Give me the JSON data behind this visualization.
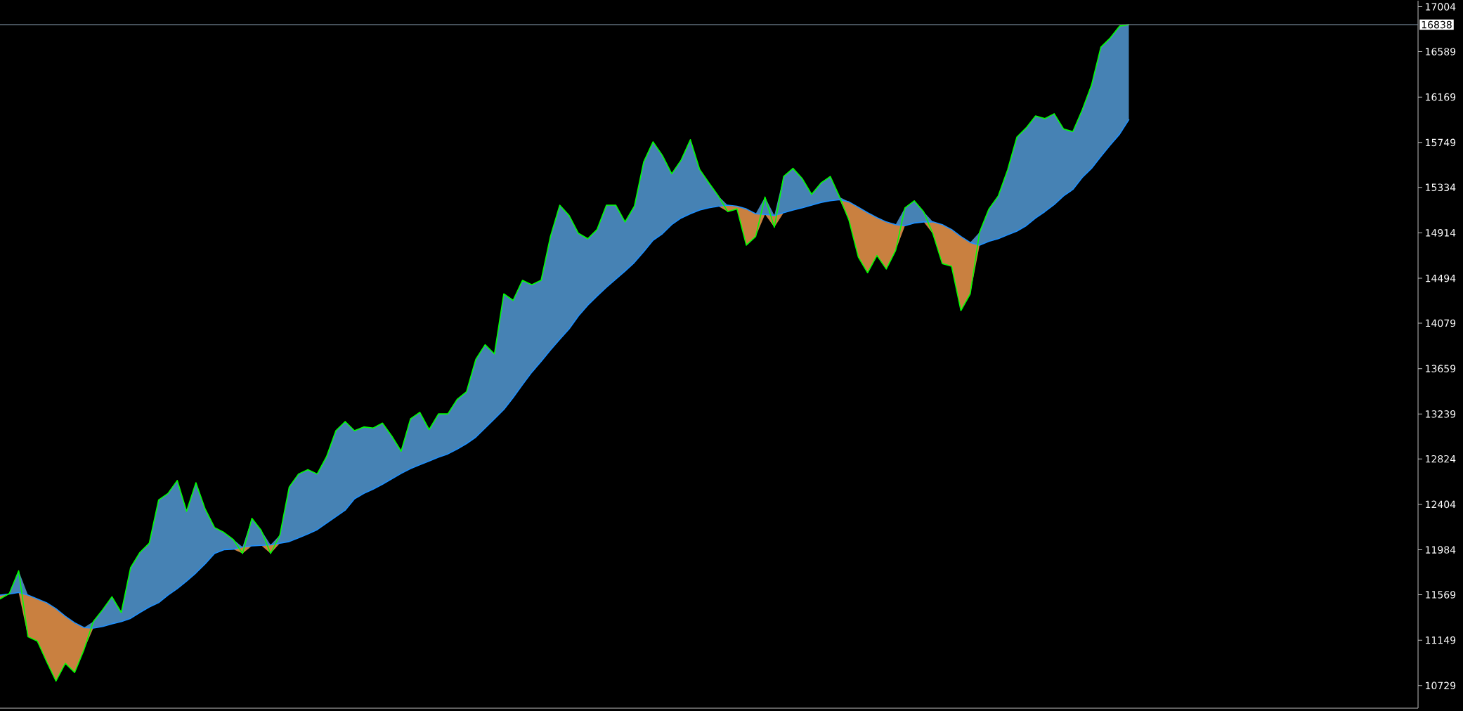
{
  "chart_data": {
    "type": "line",
    "categories": [
      null,
      null,
      null,
      null,
      null,
      null,
      null,
      null,
      null,
      null,
      null,
      null,
      null,
      null,
      null,
      null,
      null,
      null,
      null,
      null,
      null,
      null,
      null,
      null,
      null,
      null,
      null,
      null,
      null,
      null,
      null,
      null,
      null,
      null,
      null,
      null,
      null,
      null,
      null,
      null,
      null,
      null,
      null,
      null,
      null,
      null,
      null,
      null,
      null,
      null,
      null,
      null,
      null,
      null,
      null,
      null,
      null,
      null,
      null,
      null,
      null,
      null,
      null,
      null,
      null,
      null,
      null,
      null,
      null,
      null,
      null,
      null,
      null,
      null,
      null,
      null,
      null,
      null,
      null,
      null,
      null,
      null,
      null,
      null,
      null,
      null,
      null,
      null,
      null,
      null,
      null,
      null,
      null,
      null,
      null,
      null,
      null,
      null,
      null,
      null,
      null,
      null,
      null,
      null,
      null,
      null,
      null,
      null,
      null,
      null,
      null,
      null,
      null,
      null,
      null,
      null,
      null,
      null,
      null,
      null,
      null,
      null
    ],
    "series": [
      {
        "type": "area",
        "color": "#4682b4",
        "values": [
          11565,
          11580,
          11790,
          11565,
          null,
          null,
          null,
          null,
          null,
          11265,
          11320,
          11430,
          11550,
          11405,
          11820,
          11960,
          12045,
          12445,
          12505,
          12625,
          12340,
          12605,
          12360,
          12190,
          12145,
          12080,
          12010,
          12275,
          12165,
          12030,
          12120,
          12565,
          12685,
          12725,
          12685,
          12845,
          13085,
          13170,
          13085,
          13120,
          13110,
          13155,
          13035,
          12895,
          13195,
          13255,
          13095,
          13240,
          13240,
          13375,
          13445,
          13745,
          13880,
          13795,
          14350,
          14290,
          14475,
          14435,
          14475,
          14880,
          15170,
          15075,
          14910,
          14860,
          14945,
          15170,
          15170,
          15015,
          15160,
          15570,
          15755,
          15630,
          15460,
          15585,
          15775,
          15500,
          15375,
          15255,
          15170,
          null,
          null,
          15090,
          15245,
          15075,
          15435,
          15510,
          15415,
          15270,
          15375,
          15435,
          15245,
          15200,
          null,
          null,
          null,
          null,
          14990,
          15145,
          15210,
          15110,
          15015,
          null,
          null,
          null,
          14825,
          14920,
          15135,
          15255,
          15495,
          15800,
          15885,
          15995,
          15970,
          16015,
          15875,
          15850,
          16050,
          16280,
          16630,
          16715,
          16825,
          16838
        ]
      },
      {
        "type": "area",
        "color": "#c98040",
        "values": [
          11565,
          11575,
          11590,
          11565,
          11530,
          11495,
          11440,
          11370,
          11310,
          11265,
          11260,
          null,
          null,
          null,
          null,
          null,
          null,
          null,
          null,
          null,
          null,
          null,
          null,
          null,
          null,
          11990,
          12010,
          12020,
          12025,
          12030,
          12045,
          null,
          null,
          null,
          null,
          null,
          null,
          null,
          null,
          null,
          null,
          null,
          null,
          null,
          null,
          null,
          null,
          null,
          null,
          null,
          null,
          null,
          null,
          null,
          null,
          null,
          null,
          null,
          null,
          null,
          null,
          null,
          null,
          null,
          null,
          null,
          null,
          null,
          null,
          null,
          null,
          null,
          null,
          null,
          null,
          null,
          null,
          15160,
          15170,
          15160,
          15135,
          15090,
          15085,
          15075,
          15100,
          null,
          null,
          null,
          null,
          null,
          15220,
          15200,
          15150,
          15100,
          15055,
          15015,
          14990,
          14980,
          null,
          15015,
          15015,
          14990,
          14945,
          14880,
          14825,
          14800,
          null,
          null,
          null,
          null,
          null,
          null,
          null,
          null,
          null,
          null,
          null,
          null,
          null,
          null,
          null,
          null
        ]
      },
      {
        "color": "#1e90ff",
        "values": [
          11565,
          11575,
          11590,
          11565,
          11530,
          11495,
          11440,
          11370,
          11310,
          11265,
          11260,
          11275,
          11300,
          11320,
          11350,
          11405,
          11455,
          11495,
          11565,
          11625,
          11695,
          11770,
          11855,
          11950,
          11985,
          11990,
          12010,
          12020,
          12025,
          12030,
          12045,
          12060,
          12095,
          12130,
          12170,
          12230,
          12290,
          12350,
          12455,
          12505,
          12545,
          12590,
          12640,
          12690,
          12735,
          12770,
          12805,
          12840,
          12870,
          12915,
          12965,
          13025,
          13110,
          13195,
          13280,
          13390,
          13510,
          13625,
          13725,
          13830,
          13930,
          14025,
          14145,
          14245,
          14330,
          14410,
          14485,
          14560,
          14640,
          14740,
          14845,
          14905,
          14990,
          15050,
          15090,
          15125,
          15145,
          15160,
          15170,
          15160,
          15135,
          15090,
          15085,
          15075,
          15100,
          15125,
          15145,
          15170,
          15195,
          15210,
          15220,
          15200,
          15150,
          15100,
          15055,
          15015,
          14990,
          14980,
          15005,
          15015,
          15015,
          14990,
          14945,
          14880,
          14825,
          14800,
          14835,
          14860,
          14895,
          14930,
          14980,
          15050,
          15110,
          15175,
          15255,
          15315,
          15425,
          15510,
          15620,
          15725,
          15825,
          15960
        ]
      },
      {
        "color": "#00ff00",
        "values": [
          11530,
          11580,
          11790,
          11180,
          11140,
          10950,
          10770,
          10935,
          10850,
          11060,
          11320,
          11430,
          11550,
          11405,
          11820,
          11960,
          12045,
          12445,
          12505,
          12625,
          12340,
          12605,
          12360,
          12190,
          12145,
          12080,
          11950,
          12275,
          12165,
          11950,
          12120,
          12565,
          12685,
          12725,
          12685,
          12845,
          13085,
          13170,
          13085,
          13120,
          13110,
          13155,
          13035,
          12895,
          13195,
          13255,
          13095,
          13240,
          13240,
          13375,
          13445,
          13745,
          13880,
          13795,
          14350,
          14290,
          14475,
          14435,
          14475,
          14880,
          15170,
          15075,
          14910,
          14860,
          14945,
          15170,
          15170,
          15015,
          15160,
          15570,
          15755,
          15630,
          15460,
          15585,
          15775,
          15500,
          15375,
          15255,
          15110,
          15135,
          14800,
          14880,
          15245,
          14965,
          15435,
          15510,
          15415,
          15270,
          15375,
          15435,
          15245,
          15030,
          14690,
          14545,
          14705,
          14580,
          14750,
          15145,
          15210,
          15110,
          14905,
          14630,
          14605,
          14195,
          14350,
          14920,
          15135,
          15255,
          15495,
          15800,
          15885,
          15995,
          15970,
          16015,
          15875,
          15850,
          16050,
          16280,
          16630,
          16715,
          16825,
          16838
        ]
      }
    ],
    "ylim": [
      10520,
      17060
    ],
    "yticks": [
      10729,
      11149,
      11569,
      11984,
      12404,
      12824,
      13239,
      13659,
      14079,
      14494,
      14914,
      15334,
      15749,
      16169,
      16589,
      17004
    ],
    "tick_labels": "y",
    "ref_lines": [
      {
        "axis": "y",
        "value": 16838,
        "label": "16838",
        "color": "#778899"
      }
    ]
  }
}
